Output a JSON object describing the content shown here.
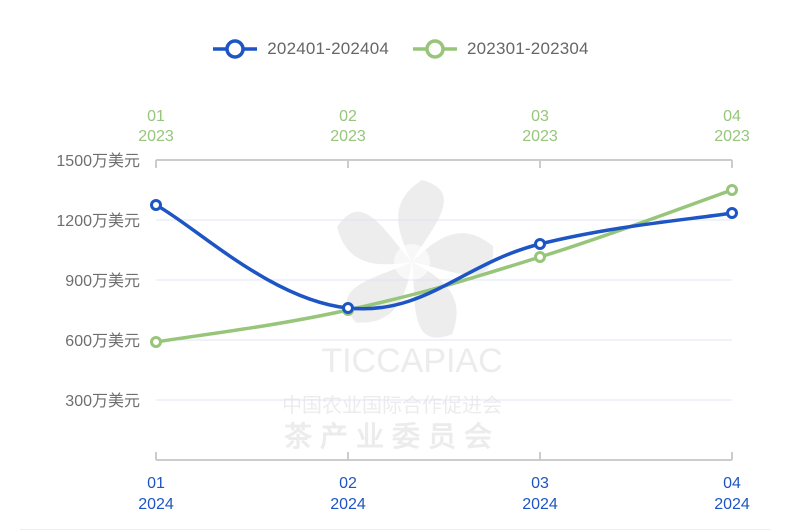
{
  "legend": [
    {
      "label": "202401-202404",
      "color": "#1d55c4"
    },
    {
      "label": "202301-202304",
      "color": "#97c57a"
    }
  ],
  "watermark": {
    "brand": "TICCAPIAC",
    "line1": "中国农业国际合作促进会",
    "line2": "茶产业委员会"
  },
  "chart_data": {
    "type": "line",
    "title": "",
    "xlabel": "",
    "ylabel": "",
    "ylim": [
      0,
      1500
    ],
    "y_ticks": [
      {
        "value": 300,
        "label": "300万美元"
      },
      {
        "value": 600,
        "label": "600万美元"
      },
      {
        "value": 900,
        "label": "900万美元"
      },
      {
        "value": 1200,
        "label": "1200万美元"
      },
      {
        "value": 1500,
        "label": "1500万美元"
      }
    ],
    "grid": true,
    "legend_position": "top",
    "smooth": true,
    "x_axes": [
      {
        "position": "bottom",
        "series": "202401-202404",
        "color": "#1d55c4",
        "categories": [
          [
            "01",
            "2024"
          ],
          [
            "02",
            "2024"
          ],
          [
            "03",
            "2024"
          ],
          [
            "04",
            "2024"
          ]
        ]
      },
      {
        "position": "top",
        "series": "202301-202304",
        "color": "#97c57a",
        "categories": [
          [
            "01",
            "2023"
          ],
          [
            "02",
            "2023"
          ],
          [
            "03",
            "2023"
          ],
          [
            "04",
            "2023"
          ]
        ]
      }
    ],
    "categories": [
      "01",
      "02",
      "03",
      "04"
    ],
    "series": [
      {
        "name": "202401-202404",
        "color": "#1d55c4",
        "axis": "bottom",
        "values": [
          1275,
          760,
          1080,
          1235
        ]
      },
      {
        "name": "202301-202304",
        "color": "#97c57a",
        "axis": "top",
        "values": [
          590,
          750,
          1015,
          1350
        ]
      }
    ]
  }
}
